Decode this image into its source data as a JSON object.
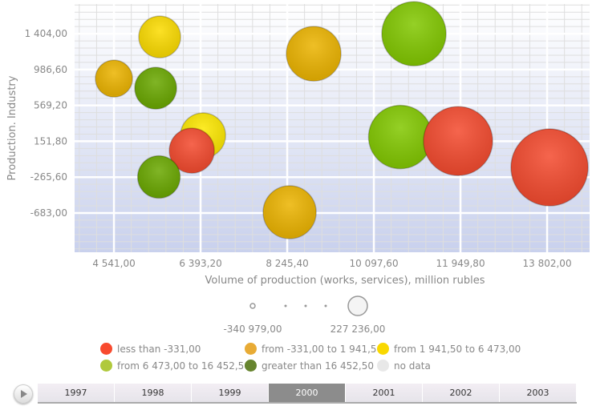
{
  "chart_data": {
    "type": "bubble",
    "xlabel": "Volume of production (works, services), million rubles",
    "ylabel": "Production. Industry",
    "xlim": [
      3700,
      14710
    ],
    "ylim": [
      -1140,
      1750
    ],
    "x_ticks": [
      4541.0,
      6393.2,
      8245.4,
      10097.6,
      11949.8,
      13802.0
    ],
    "x_tick_labels": [
      "4 541,00",
      "6 393,20",
      "8 245,40",
      "10 097,60",
      "11 949,80",
      "13 802,00"
    ],
    "y_ticks": [
      1404.0,
      986.6,
      569.2,
      151.8,
      -265.6,
      -683.0
    ],
    "y_tick_labels": [
      "1 404,00",
      "986,60",
      "569,20",
      "151,80",
      "-265,60",
      "-683,00"
    ],
    "grid": true,
    "points": [
      {
        "x": 5519,
        "y": 1367,
        "size": 20,
        "color": "#fcdc00"
      },
      {
        "x": 4541,
        "y": 882,
        "size": 5,
        "color": "#ecb400"
      },
      {
        "x": 5433,
        "y": 770,
        "size": 20,
        "color": "#6aa800"
      },
      {
        "x": 8811,
        "y": 1171,
        "size": 60,
        "color": "#ecb400"
      },
      {
        "x": 10955,
        "y": 1404,
        "size": 90,
        "color": "#82c800"
      },
      {
        "x": 6445,
        "y": 220,
        "size": 30,
        "color": "#fde800"
      },
      {
        "x": 6205,
        "y": 43,
        "size": 30,
        "color": "#f44a2e"
      },
      {
        "x": 5502,
        "y": -264,
        "size": 22,
        "color": "#6aa800"
      },
      {
        "x": 8297,
        "y": -674,
        "size": 55,
        "color": "#ecb400"
      },
      {
        "x": 10664,
        "y": 202,
        "size": 88,
        "color": "#82c800"
      },
      {
        "x": 11898,
        "y": 155,
        "size": 105,
        "color": "#f44a2e"
      },
      {
        "x": 13853,
        "y": -152,
        "size": 130,
        "color": "#f44a2e"
      }
    ],
    "size_legend": {
      "min_label": "-340 979,00",
      "max_label": "227 236,00"
    },
    "color_legend": [
      {
        "label": "less than -331,00",
        "color": "#f84a2e"
      },
      {
        "label": "from -331,00 to 1 941,50",
        "color": "#e8ab35"
      },
      {
        "label": "from 1 941,50 to 6 473,00",
        "color": "#f9d800"
      },
      {
        "label": "from 6 473,00 to 16 452,50",
        "color": "#b0c93c"
      },
      {
        "label": "greater than 16 452,50",
        "color": "#66842e"
      },
      {
        "label": "no data",
        "color": "#e8e8e8"
      }
    ]
  },
  "timeline": {
    "years": [
      "1997",
      "1998",
      "1999",
      "2000",
      "2001",
      "2002",
      "2003"
    ],
    "selected": "2000"
  }
}
